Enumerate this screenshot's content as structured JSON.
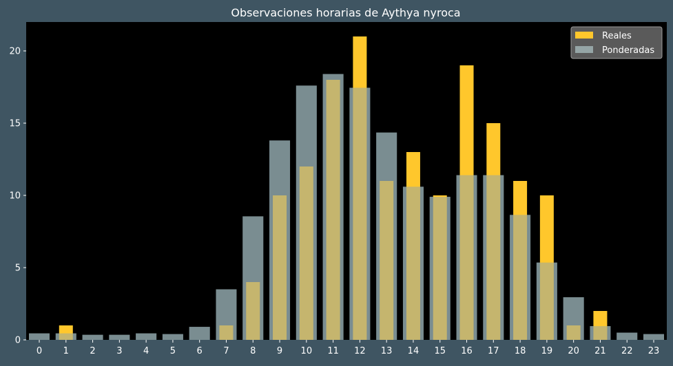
{
  "chart_data": {
    "type": "bar",
    "title": "Observaciones horarias de Aythya nyroca",
    "xlabel": "",
    "ylabel": "",
    "categories": [
      "0",
      "1",
      "2",
      "3",
      "4",
      "5",
      "6",
      "7",
      "8",
      "9",
      "10",
      "11",
      "12",
      "13",
      "14",
      "15",
      "16",
      "17",
      "18",
      "19",
      "20",
      "21",
      "22",
      "23"
    ],
    "series": [
      {
        "name": "Reales",
        "color": "#ffc72c",
        "values": [
          0,
          1,
          0,
          0,
          0,
          0,
          0,
          1,
          4,
          10,
          12,
          18,
          21,
          11,
          13,
          10,
          19,
          15,
          11,
          10,
          1,
          2,
          0,
          0
        ]
      },
      {
        "name": "Ponderadas",
        "color": "#95a5a6",
        "values": [
          0.45,
          0.45,
          0.35,
          0.35,
          0.45,
          0.4,
          0.9,
          3.5,
          8.55,
          13.8,
          17.6,
          18.4,
          17.45,
          14.35,
          10.6,
          9.9,
          11.4,
          11.4,
          8.65,
          5.35,
          2.95,
          0.95,
          0.5,
          0.4
        ]
      }
    ],
    "ylim": [
      0,
      22
    ],
    "yticks": [
      0,
      5,
      10,
      15,
      20
    ],
    "legend_position": "top-right",
    "grid": false,
    "colors": {
      "figure_background": "#3f5562",
      "plot_background": "#000000",
      "text": "#ffffff"
    }
  }
}
